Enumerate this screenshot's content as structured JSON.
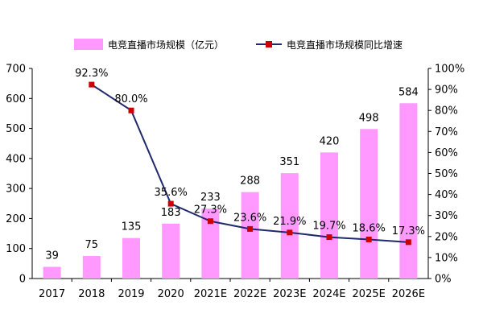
{
  "chart_data": {
    "type": "bar",
    "categories": [
      "2017",
      "2018",
      "2019",
      "2020",
      "2021E",
      "2022E",
      "2023E",
      "2024E",
      "2025E",
      "2026E"
    ],
    "series": [
      {
        "name": "电竞直播市场规模（亿元）",
        "type": "bar",
        "axis": "left",
        "values": [
          39,
          75,
          135,
          183,
          233,
          288,
          351,
          420,
          498,
          584
        ],
        "labels": [
          "39",
          "75",
          "135",
          "183",
          "233",
          "288",
          "351",
          "420",
          "498",
          "584"
        ]
      },
      {
        "name": "电竞直播市场规模同比增速",
        "type": "line",
        "axis": "right",
        "values": [
          null,
          92.3,
          80.0,
          35.6,
          27.3,
          23.6,
          21.9,
          19.7,
          18.6,
          17.3
        ],
        "labels": [
          "",
          "92.3%",
          "80.0%",
          "35.6%",
          "27.3%",
          "23.6%",
          "21.9%",
          "19.7%",
          "18.6%",
          "17.3%"
        ]
      }
    ],
    "y_left": {
      "min": 0,
      "max": 700,
      "ticks": [
        "0",
        "100",
        "200",
        "300",
        "400",
        "500",
        "600",
        "700"
      ]
    },
    "y_right": {
      "min": 0,
      "max": 100,
      "ticks": [
        "0%",
        "10%",
        "20%",
        "30%",
        "40%",
        "50%",
        "60%",
        "70%",
        "80%",
        "90%",
        "100%"
      ]
    },
    "grid": false,
    "legend": "top",
    "colors": {
      "bar": "#ff99ff",
      "line": "#1f2a6b",
      "marker": "#cc0000",
      "axis": "#000000"
    }
  }
}
